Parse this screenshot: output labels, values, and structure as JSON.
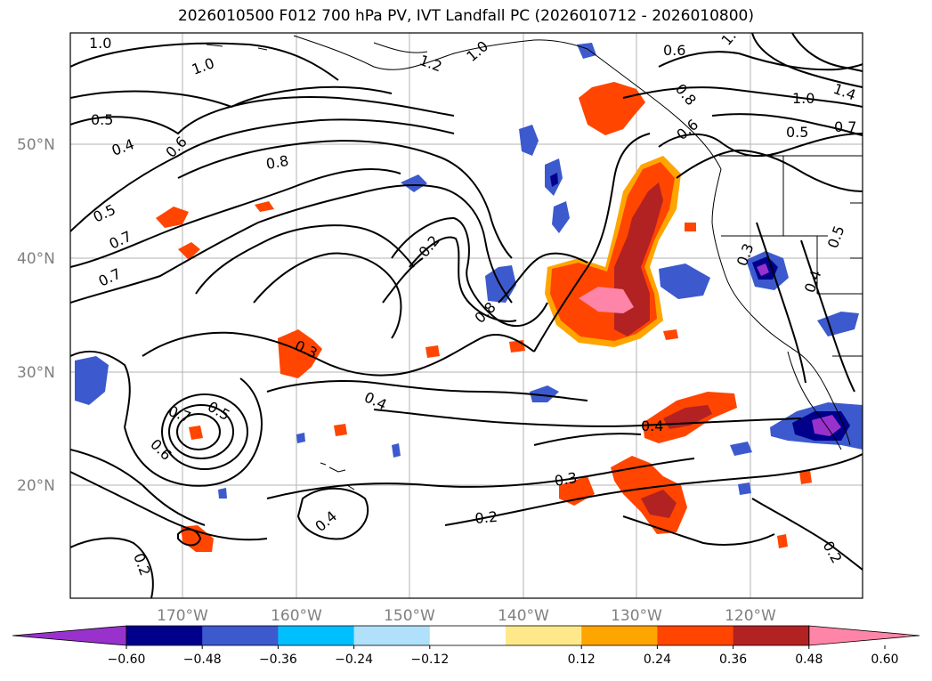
{
  "title": "2026010500 F012 700 hPa PV, IVT Landfall PC (2026010712 - 2026010800)",
  "lat_labels": [
    "50°N",
    "40°N",
    "30°N",
    "20°N"
  ],
  "lon_labels": [
    "170°W",
    "160°W",
    "150°W",
    "140°W",
    "130°W",
    "120°W"
  ],
  "contour_labels": [
    "1.0",
    "1.0",
    "1.2",
    "1.0",
    "0.6",
    "1.",
    "0.8",
    "1.0",
    "1.4",
    "0.5",
    "0.7",
    "0.5",
    "0.4",
    "0.6",
    "0.8",
    "0.6",
    "0.5",
    "0.7",
    "0.7",
    "0.2",
    "0.8",
    "0.3",
    "0.3",
    "0.4",
    "0.7",
    "0.5",
    "0.6",
    "0.4",
    "0.3",
    "0.4",
    "0.2",
    "0.2",
    "0.2",
    "0.4",
    "0.5"
  ],
  "colorbar": {
    "ticks": [
      "−0.60",
      "−0.48",
      "−0.36",
      "−0.24",
      "−0.12",
      "0.12",
      "0.24",
      "0.36",
      "0.48",
      "0.60"
    ],
    "colors": [
      "#9932cc",
      "#00008b",
      "#3c5acd",
      "#00bfff",
      "#b0e0fa",
      "#ffffff",
      "#ffe88a",
      "#ffa500",
      "#ff4500",
      "#b22222",
      "#ff85a8"
    ]
  }
}
